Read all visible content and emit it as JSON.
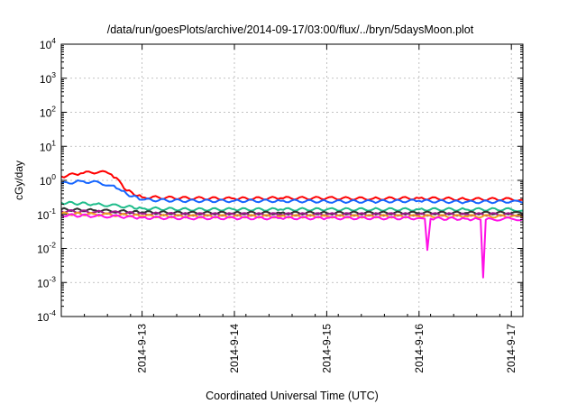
{
  "chart_data": {
    "type": "line",
    "title": "/data/run/goesPlots/archive/2014-09-17/03:00/flux/../bryn/5daysMoon.plot",
    "xlabel": "Coordinated Universal Time (UTC)",
    "ylabel": "cGy/day",
    "yscale": "log",
    "ylim": [
      0.0001,
      10000
    ],
    "y_ticks": [
      {
        "value": 0.0001,
        "base": "10",
        "exp": "-4"
      },
      {
        "value": 0.001,
        "base": "10",
        "exp": "-3"
      },
      {
        "value": 0.01,
        "base": "10",
        "exp": "-2"
      },
      {
        "value": 0.1,
        "base": "10",
        "exp": "-1"
      },
      {
        "value": 1,
        "base": "10",
        "exp": "0"
      },
      {
        "value": 10,
        "base": "10",
        "exp": "1"
      },
      {
        "value": 100,
        "base": "10",
        "exp": "2"
      },
      {
        "value": 1000,
        "base": "10",
        "exp": "3"
      },
      {
        "value": 10000,
        "base": "10",
        "exp": "4"
      }
    ],
    "xlim": [
      "2014-09-12 03:00",
      "2014-09-17 03:00"
    ],
    "x_ticks": [
      "2014-9-13",
      "2014-9-14",
      "2014-9-15",
      "2014-9-16",
      "2014-9-17"
    ],
    "grid": true,
    "legend": "none",
    "series": [
      {
        "color": "#ff0000",
        "x": [
          "2014-09-12 03:00",
          "2014-09-12 08:00",
          "2014-09-12 13:00",
          "2014-09-12 16:00",
          "2014-09-12 18:00",
          "2014-09-12 20:00",
          "2014-09-13 00:00",
          "2014-09-13 12:00",
          "2014-09-14 00:00",
          "2014-09-14 12:00",
          "2014-09-15 00:00",
          "2014-09-15 12:00",
          "2014-09-16 00:00",
          "2014-09-16 12:00",
          "2014-09-17 00:00",
          "2014-09-17 03:00"
        ],
        "y": [
          1.3,
          1.6,
          1.8,
          1.5,
          1.0,
          0.5,
          0.32,
          0.3,
          0.29,
          0.3,
          0.3,
          0.29,
          0.3,
          0.28,
          0.28,
          0.27
        ]
      },
      {
        "color": "#1565ff",
        "x": [
          "2014-09-12 03:00",
          "2014-09-12 08:00",
          "2014-09-12 13:00",
          "2014-09-12 16:00",
          "2014-09-12 18:00",
          "2014-09-12 20:00",
          "2014-09-13 00:00",
          "2014-09-13 12:00",
          "2014-09-14 00:00",
          "2014-09-14 12:00",
          "2014-09-15 00:00",
          "2014-09-15 12:00",
          "2014-09-16 00:00",
          "2014-09-16 12:00",
          "2014-09-17 00:00",
          "2014-09-17 03:00"
        ],
        "y": [
          0.8,
          0.95,
          0.85,
          0.7,
          0.55,
          0.4,
          0.27,
          0.25,
          0.25,
          0.25,
          0.24,
          0.24,
          0.25,
          0.23,
          0.24,
          0.22
        ]
      },
      {
        "color": "#1ebc8a",
        "x": [
          "2014-09-12 03:00",
          "2014-09-12 12:00",
          "2014-09-12 20:00",
          "2014-09-13 00:00",
          "2014-09-13 12:00",
          "2014-09-14 00:00",
          "2014-09-14 12:00",
          "2014-09-15 00:00",
          "2014-09-15 12:00",
          "2014-09-16 00:00",
          "2014-09-16 12:00",
          "2014-09-17 00:00",
          "2014-09-17 03:00"
        ],
        "y": [
          0.22,
          0.2,
          0.17,
          0.15,
          0.14,
          0.14,
          0.14,
          0.14,
          0.14,
          0.14,
          0.14,
          0.14,
          0.13
        ]
      },
      {
        "color": "#303030",
        "x": [
          "2014-09-12 03:00",
          "2014-09-12 12:00",
          "2014-09-12 20:00",
          "2014-09-13 00:00",
          "2014-09-13 12:00",
          "2014-09-14 00:00",
          "2014-09-14 12:00",
          "2014-09-15 00:00",
          "2014-09-15 12:00",
          "2014-09-16 00:00",
          "2014-09-16 12:00",
          "2014-09-17 00:00",
          "2014-09-17 03:00"
        ],
        "y": [
          0.14,
          0.13,
          0.12,
          0.115,
          0.11,
          0.11,
          0.11,
          0.11,
          0.11,
          0.11,
          0.11,
          0.11,
          0.105
        ]
      },
      {
        "color": "#a0188a",
        "x": [
          "2014-09-12 03:00",
          "2014-09-12 12:00",
          "2014-09-12 20:00",
          "2014-09-13 00:00",
          "2014-09-13 12:00",
          "2014-09-14 00:00",
          "2014-09-14 12:00",
          "2014-09-15 00:00",
          "2014-09-15 12:00",
          "2014-09-16 00:00",
          "2014-09-16 12:00",
          "2014-09-17 00:00",
          "2014-09-17 03:00"
        ],
        "y": [
          0.125,
          0.118,
          0.11,
          0.105,
          0.1,
          0.1,
          0.1,
          0.1,
          0.1,
          0.1,
          0.1,
          0.1,
          0.095
        ]
      },
      {
        "color": "#f0a020",
        "x": [
          "2014-09-12 03:00",
          "2014-09-12 12:00",
          "2014-09-12 20:00",
          "2014-09-13 00:00",
          "2014-09-13 12:00",
          "2014-09-14 00:00",
          "2014-09-14 12:00",
          "2014-09-15 00:00",
          "2014-09-15 12:00",
          "2014-09-16 00:00",
          "2014-09-16 12:00",
          "2014-09-17 00:00",
          "2014-09-17 03:00"
        ],
        "y": [
          0.105,
          0.1,
          0.095,
          0.09,
          0.088,
          0.088,
          0.088,
          0.088,
          0.088,
          0.088,
          0.088,
          0.088,
          0.085
        ]
      },
      {
        "color": "#ff10e6",
        "x": [
          "2014-09-12 03:00",
          "2014-09-12 12:00",
          "2014-09-12 20:00",
          "2014-09-13 00:00",
          "2014-09-13 12:00",
          "2014-09-14 00:00",
          "2014-09-14 12:00",
          "2014-09-15 00:00",
          "2014-09-15 12:00",
          "2014-09-16 00:00",
          "2014-09-16 01:30",
          "2014-09-16 02:10",
          "2014-09-16 03:00",
          "2014-09-16 12:00",
          "2014-09-16 16:00",
          "2014-09-16 16:40",
          "2014-09-16 17:20",
          "2014-09-17 00:00",
          "2014-09-17 03:00"
        ],
        "y": [
          0.095,
          0.09,
          0.085,
          0.08,
          0.078,
          0.078,
          0.078,
          0.078,
          0.078,
          0.078,
          0.075,
          0.009,
          0.075,
          0.075,
          0.07,
          0.0014,
          0.07,
          0.075,
          0.072
        ]
      }
    ]
  }
}
